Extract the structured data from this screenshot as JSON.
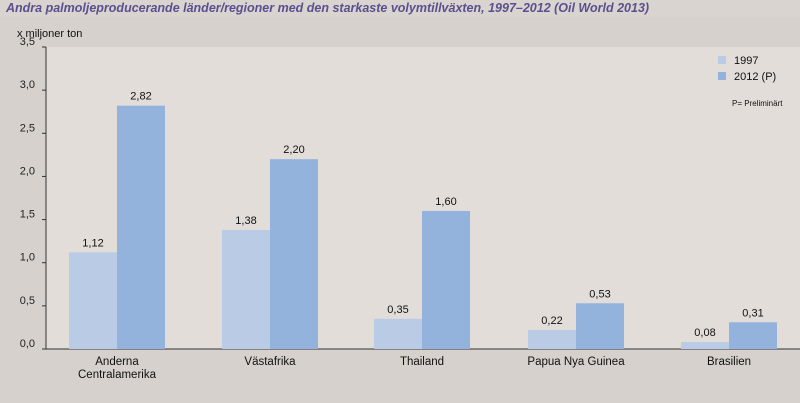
{
  "chart_data": {
    "type": "bar",
    "title": "Andra palmoljeproducerande länder/regioner med den starkaste volymtillväxten, 1997–2012 (Oil World 2013)",
    "ylabel": "x miljoner ton",
    "xlabel": "",
    "categories": [
      [
        "Anderna",
        "Centralamerika"
      ],
      [
        "Västafrika"
      ],
      [
        "Thailand"
      ],
      [
        "Papua Nya Guinea"
      ],
      [
        "Brasilien"
      ]
    ],
    "series": [
      {
        "name": "1997",
        "values": [
          1.12,
          1.38,
          0.35,
          0.22,
          0.08
        ],
        "labels": [
          "1,12",
          "1,38",
          "0,35",
          "0,22",
          "0,08"
        ],
        "color": "#b9cbe5"
      },
      {
        "name": "2012 (P)",
        "values": [
          2.82,
          2.2,
          1.6,
          0.53,
          0.31
        ],
        "labels": [
          "2,82",
          "2,20",
          "1,60",
          "0,53",
          "0,31"
        ],
        "color": "#93b3dd"
      }
    ],
    "ylim": [
      0,
      3.5
    ],
    "yticks": [
      0,
      0.5,
      1.0,
      1.5,
      2.0,
      2.5,
      3.0,
      3.5
    ],
    "ytick_labels": [
      "0,0",
      "0,5",
      "1,0",
      "1,5",
      "2,0",
      "2,5",
      "3,0",
      "3,5"
    ],
    "grid": false,
    "legend_position": "top-right",
    "legend_note": "P= Preliminärt",
    "plot_background": "#e2ddd9",
    "frame_background": "#d6d1cc"
  }
}
